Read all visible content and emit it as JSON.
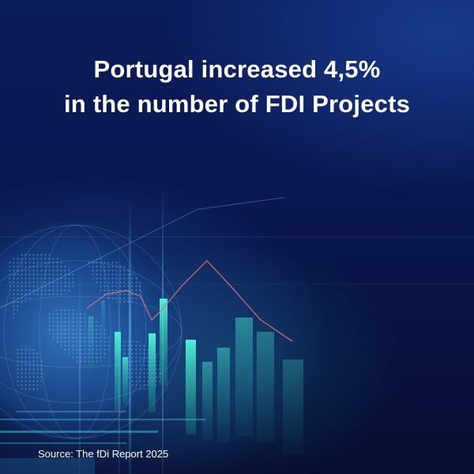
{
  "headline": {
    "line1": "Portugal increased 4,5%",
    "line2": "in the number of FDI Projects"
  },
  "source": "Source: The fDi Report 2025",
  "colors": {
    "background": "#0a1850",
    "text": "#ffffff",
    "accent_teal": "#2fd6c0",
    "accent_blue": "#3d8fe0",
    "trend_line": "#d9707a"
  }
}
